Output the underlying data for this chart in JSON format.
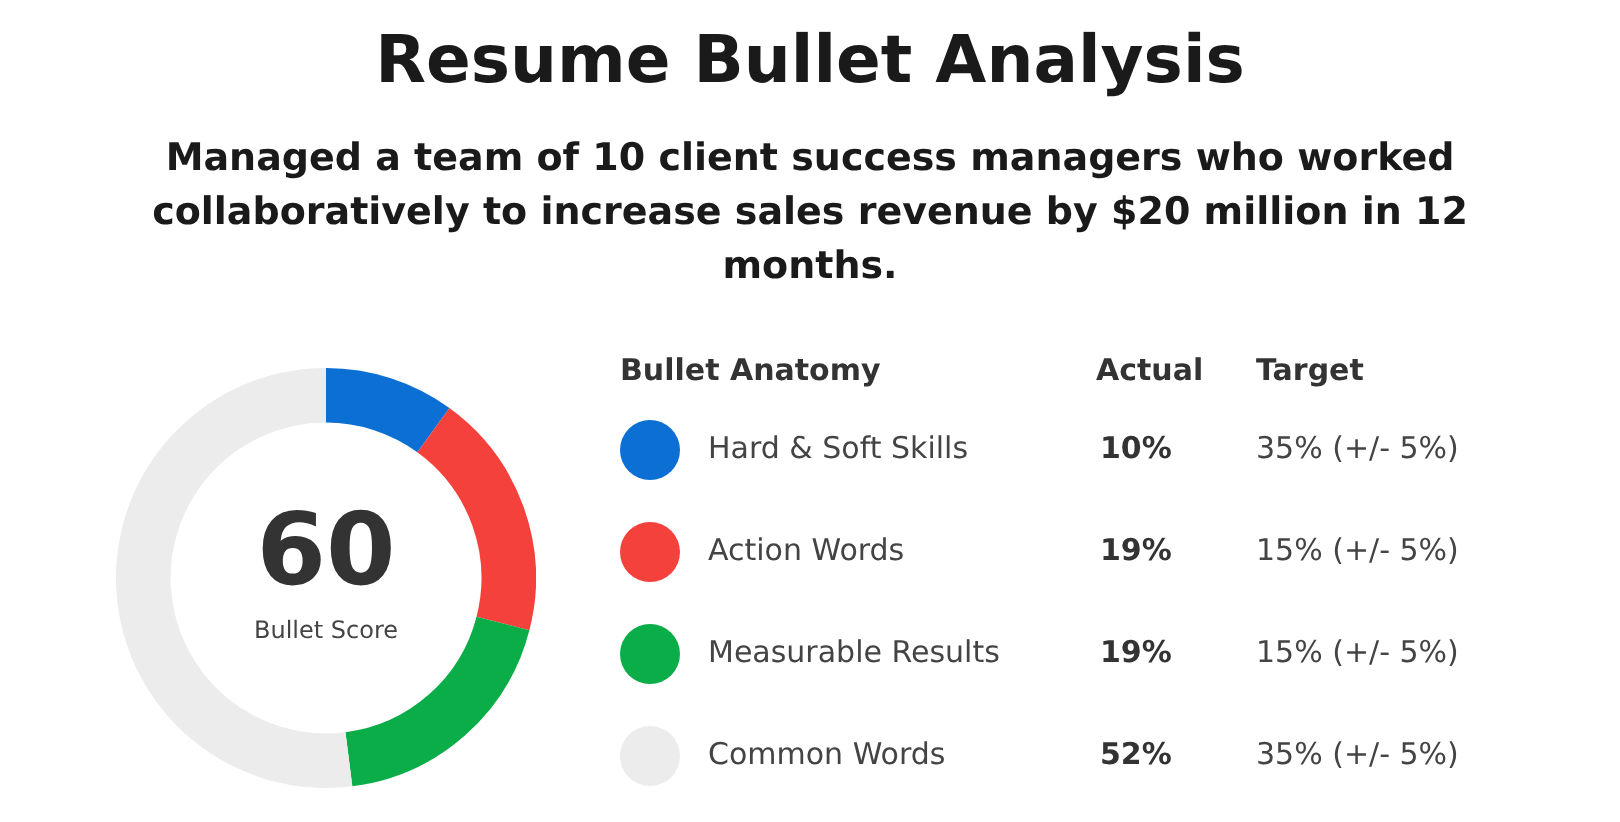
{
  "chart_data": {
    "type": "donut",
    "title": "Resume Bullet Analysis",
    "subtitle": "Managed a team of 10 client success managers who worked collaboratively to increase sales revenue by $20 million in 12 months.",
    "legend_title": "Bullet Anatomy",
    "categories": [
      "Hard & Soft Skills",
      "Action Words",
      "Measurable Results",
      "Common Words"
    ],
    "values": [
      10,
      19,
      19,
      52
    ],
    "colors": [
      "#0b6fd3",
      "#f5413b",
      "#0bad48",
      "#ececec"
    ],
    "value_labels": [
      "10%",
      "19%",
      "19%",
      "52%"
    ],
    "legend": "right",
    "annotations": [
      "Actual",
      "Target",
      "35% (+/- 5%)",
      "15% (+/- 5%)",
      "15% (+/- 5%)",
      "35% (+/- 5%)",
      "60",
      "Bullet Score"
    ]
  }
}
